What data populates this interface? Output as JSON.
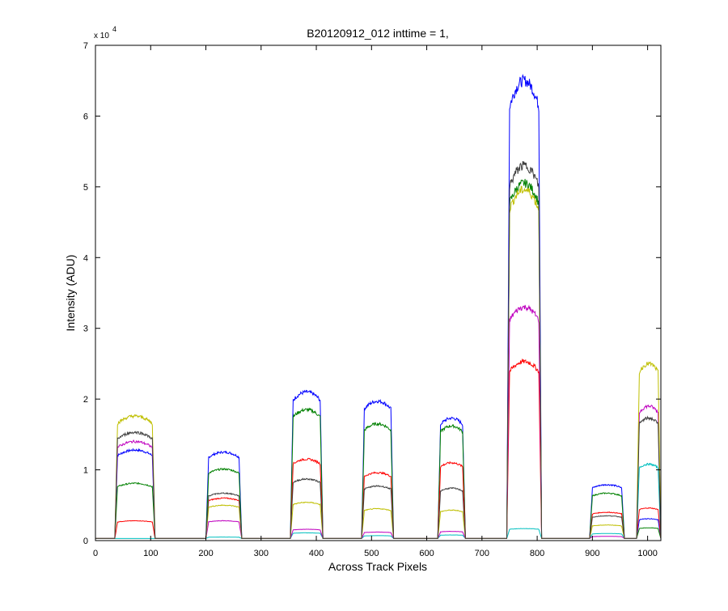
{
  "chart_data": {
    "type": "line",
    "title": "B20120912_012 inttime = 1,",
    "xlabel": "Across Track Pixels",
    "ylabel": "Intensity (ADU)",
    "y_exponent_label": "x 10",
    "y_exponent_power": "4",
    "xlim": [
      0,
      1024
    ],
    "ylim": [
      0,
      70000
    ],
    "x_ticks": [
      0,
      100,
      200,
      300,
      400,
      500,
      600,
      700,
      800,
      900,
      1000
    ],
    "y_ticks": [
      0,
      10000,
      20000,
      30000,
      40000,
      50000,
      60000,
      70000
    ],
    "x_tick_labels": [
      "0",
      "100",
      "200",
      "300",
      "400",
      "500",
      "600",
      "700",
      "800",
      "900",
      "1000"
    ],
    "y_tick_labels": [
      "0",
      "1",
      "2",
      "3",
      "4",
      "5",
      "6",
      "7"
    ],
    "grid": false,
    "legend": "none",
    "baseline": 300,
    "plateaus": [
      {
        "rise": 35,
        "fall": 108
      },
      {
        "rise": 200,
        "fall": 265
      },
      {
        "rise": 353,
        "fall": 412
      },
      {
        "rise": 482,
        "fall": 540
      },
      {
        "rise": 620,
        "fall": 670
      },
      {
        "rise": 745,
        "fall": 808
      },
      {
        "rise": 895,
        "fall": 958
      },
      {
        "rise": 980,
        "fall": 1024
      }
    ],
    "series": [
      {
        "color": "#0000ff",
        "values": [
          12800,
          12500,
          21000,
          19700,
          17300,
          65000,
          7900,
          3100
        ]
      },
      {
        "color": "#008000",
        "values": [
          8100,
          10100,
          18500,
          16500,
          16200,
          50500,
          6700,
          1800
        ]
      },
      {
        "color": "#ff0000",
        "values": [
          2800,
          6000,
          11500,
          9600,
          11000,
          25300,
          4000,
          4600
        ]
      },
      {
        "color": "#00bfbf",
        "values": [
          300,
          500,
          1100,
          700,
          800,
          1700,
          1000,
          10800
        ]
      },
      {
        "color": "#bf00bf",
        "values": [
          14000,
          2800,
          1600,
          1200,
          1300,
          33000,
          600,
          19000
        ]
      },
      {
        "color": "#bfbf00",
        "values": [
          17600,
          5000,
          5400,
          4500,
          4300,
          49600,
          2200,
          25000
        ]
      },
      {
        "color": "#404040",
        "values": [
          15300,
          6700,
          8700,
          7700,
          7400,
          53000,
          3500,
          17300
        ]
      }
    ]
  }
}
